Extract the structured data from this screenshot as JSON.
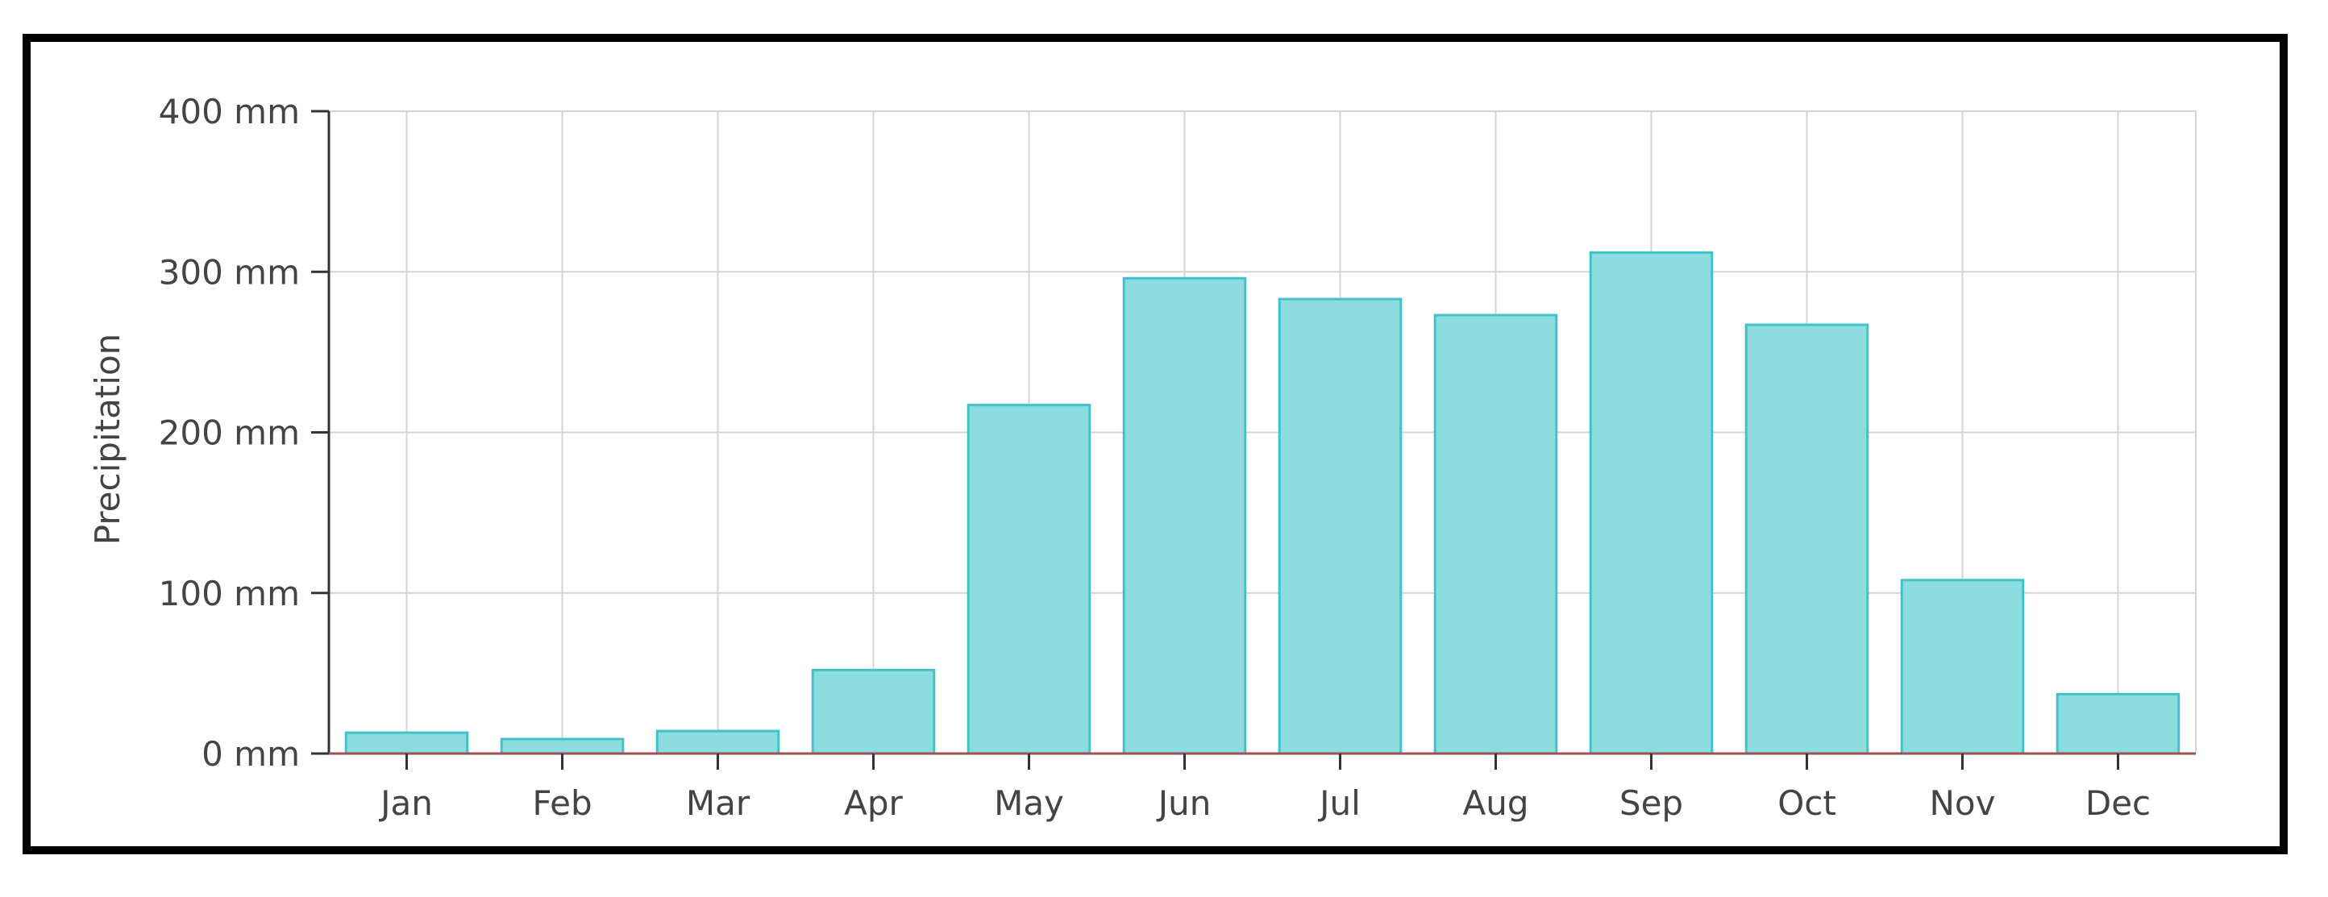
{
  "chart_data": {
    "type": "bar",
    "title": "",
    "xlabel": "",
    "ylabel": "Precipitation",
    "categories": [
      "Jan",
      "Feb",
      "Mar",
      "Apr",
      "May",
      "Jun",
      "Jul",
      "Aug",
      "Sep",
      "Oct",
      "Nov",
      "Dec"
    ],
    "values": [
      13,
      9,
      14,
      52,
      217,
      296,
      283,
      273,
      312,
      267,
      108,
      37
    ],
    "ylim": [
      0,
      400
    ],
    "yticks": [
      0,
      100,
      200,
      300,
      400
    ],
    "ytick_labels": [
      "0 mm",
      "100 mm",
      "200 mm",
      "300 mm",
      "400 mm"
    ],
    "grid": true,
    "legend": "none",
    "colors": {
      "bar_fill": "#8ddde0",
      "bar_stroke": "#3ec3c9",
      "grid": "#d4d4d4",
      "axis": "#333333",
      "baseline": "#a05050",
      "text": "#444444"
    }
  }
}
